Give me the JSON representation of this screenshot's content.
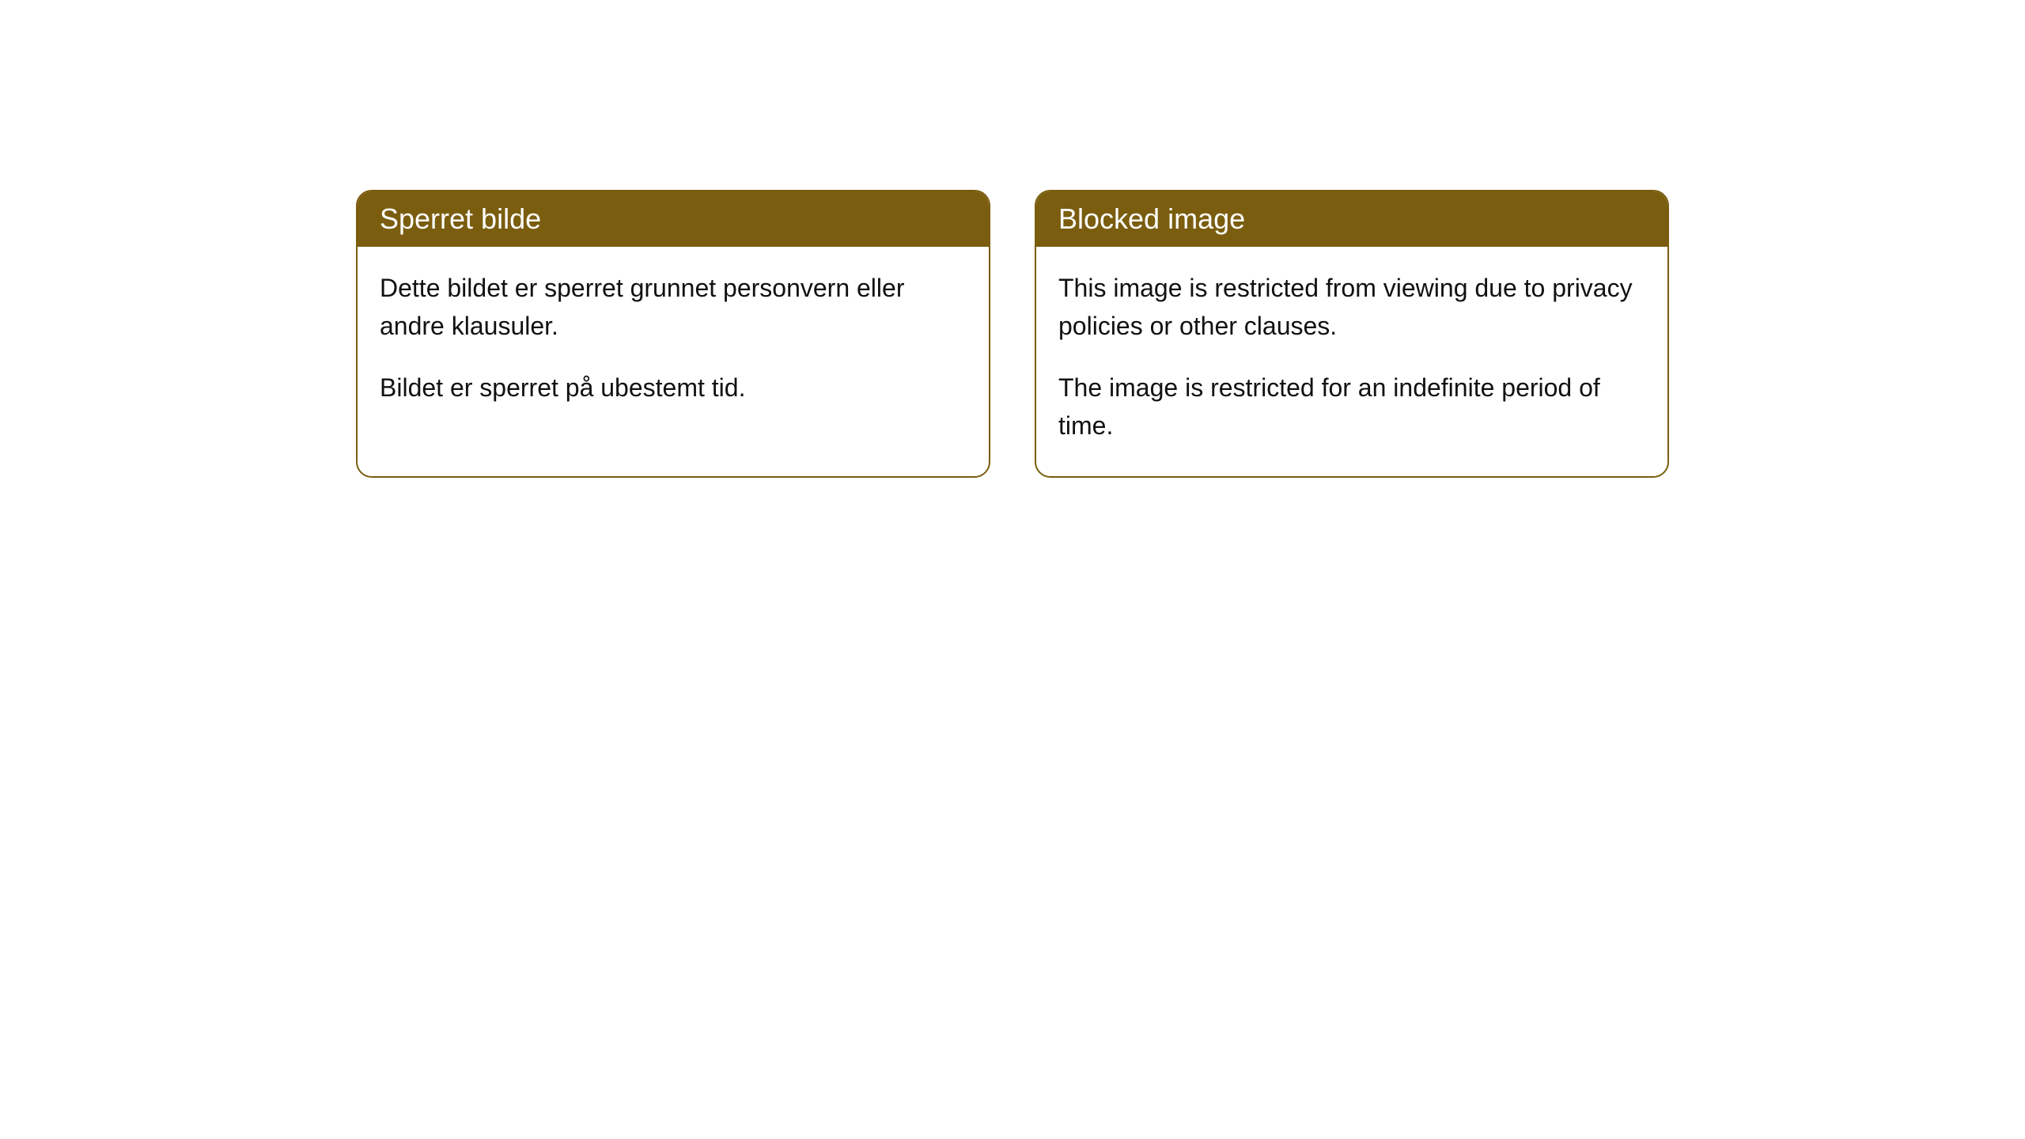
{
  "cards": [
    {
      "title": "Sperret bilde",
      "paragraph1": "Dette bildet er sperret grunnet personvern eller andre klausuler.",
      "paragraph2": "Bildet er sperret på ubestemt tid."
    },
    {
      "title": "Blocked image",
      "paragraph1": "This image is restricted from viewing due to privacy policies or other clauses.",
      "paragraph2": "The image is restricted for an indefinite period of time."
    }
  ],
  "style": {
    "header_background": "#7a5d0f",
    "header_text_color": "#ffffff",
    "card_border_color": "#7a5d0f",
    "card_background": "#ffffff",
    "body_text_color": "#111111",
    "card_border_radius": 20,
    "header_fontsize": 36,
    "body_fontsize": 32
  }
}
